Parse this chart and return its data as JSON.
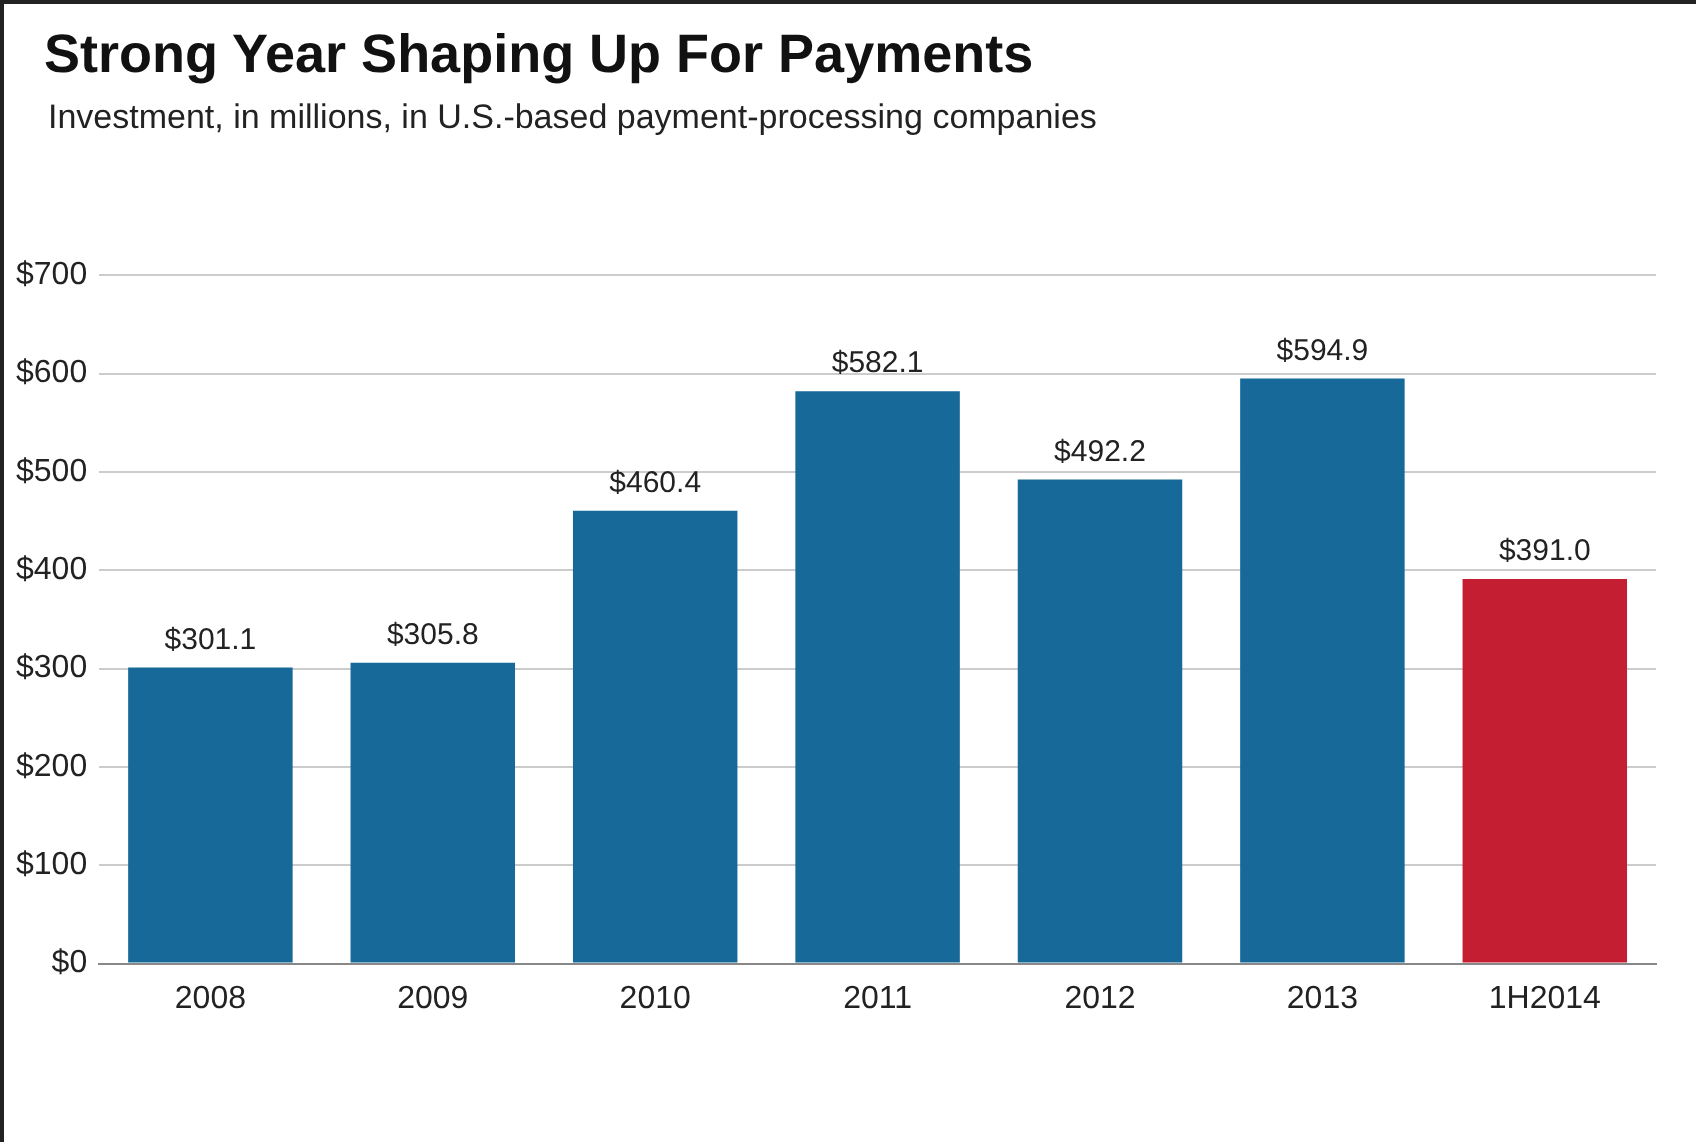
{
  "chart_data": {
    "type": "bar",
    "title": "Strong Year Shaping Up For Payments",
    "subtitle": "Investment, in millions, in U.S.-based payment-processing companies",
    "categories": [
      "2008",
      "2009",
      "2010",
      "2011",
      "2012",
      "2013",
      "1H2014"
    ],
    "values": [
      301.1,
      305.8,
      460.4,
      582.1,
      492.2,
      594.9,
      391.0
    ],
    "colors": [
      "#17699a",
      "#17699a",
      "#17699a",
      "#17699a",
      "#17699a",
      "#17699a",
      "#c41e32"
    ],
    "value_labels": [
      "$301.1",
      "$305.8",
      "$460.4",
      "$582.1",
      "$492.2",
      "$594.9",
      "$391.0"
    ],
    "ylim": [
      0,
      700
    ],
    "yticks": [
      {
        "value": 0,
        "label": "$0"
      },
      {
        "value": 100,
        "label": "$100"
      },
      {
        "value": 200,
        "label": "$200"
      },
      {
        "value": 300,
        "label": "$300"
      },
      {
        "value": 400,
        "label": "$400"
      },
      {
        "value": 500,
        "label": "$500"
      },
      {
        "value": 600,
        "label": "$600"
      },
      {
        "value": 700,
        "label": "$700"
      }
    ],
    "grid": "y"
  }
}
